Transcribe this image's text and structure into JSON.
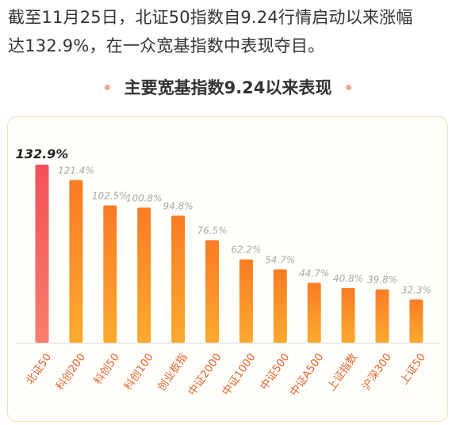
{
  "intro": {
    "line1": "截至11月25日，北证50指数自9.24行情启动以来涨幅",
    "line2": "达132.9%，在一众宽基指数中表现夺目。"
  },
  "chart_data": {
    "type": "bar",
    "title": "主要宽基指数9.24以来表现",
    "categories": [
      "北证50",
      "科创200",
      "科创50",
      "科创100",
      "创业板指",
      "中证2000",
      "中证1000",
      "中证500",
      "中证A500",
      "上证指数",
      "沪深300",
      "上证50"
    ],
    "values": [
      132.9,
      121.4,
      102.5,
      100.8,
      94.8,
      76.5,
      62.2,
      54.7,
      44.7,
      40.8,
      39.8,
      32.3
    ],
    "value_labels": [
      "132.9%",
      "121.4%",
      "102.5%",
      "100.8%",
      "94.8%",
      "76.5%",
      "62.2%",
      "54.7%",
      "44.7%",
      "40.8%",
      "39.8%",
      "32.3%"
    ],
    "unit": "%",
    "ylim": [
      0,
      132.9
    ],
    "highlight_index": 0,
    "colors": {
      "highlight_top": "#f4505c",
      "highlight_bottom": "#f87f6a",
      "bar_top": "#fb7b24",
      "bar_bottom": "#fdaa2e",
      "highlight_label": "#222222",
      "label": "#a8a8a8",
      "axis_label": "#e1662c",
      "axis_line": "#d8d8d8"
    }
  }
}
